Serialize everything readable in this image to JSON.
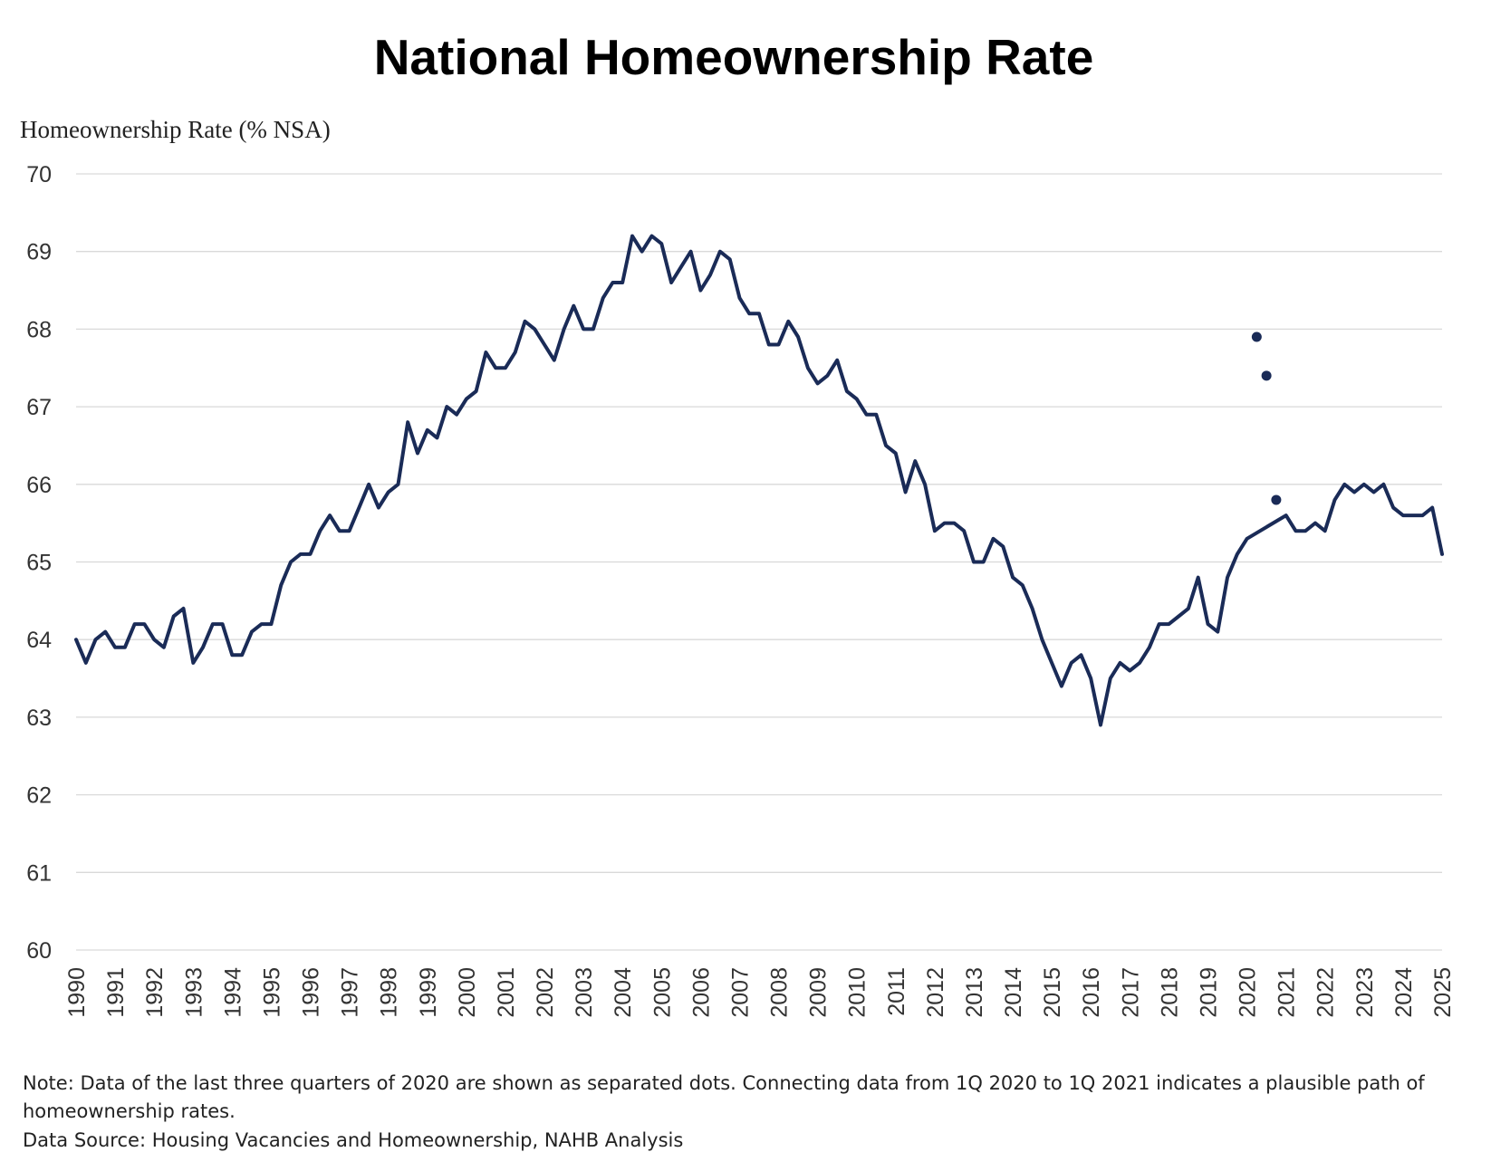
{
  "chart_data": {
    "type": "line",
    "title": "National Homeownership Rate",
    "ylabel": "Homeownership Rate (% NSA)",
    "xlabel": "",
    "ylim": [
      60,
      70
    ],
    "yticks": [
      "60",
      "61",
      "62",
      "63",
      "64",
      "65",
      "66",
      "67",
      "68",
      "69",
      "70"
    ],
    "xticks": [
      "1990",
      "1991",
      "1992",
      "1993",
      "1994",
      "1995",
      "1996",
      "1997",
      "1998",
      "1999",
      "2000",
      "2001",
      "2002",
      "2003",
      "2004",
      "2005",
      "2006",
      "2007",
      "2008",
      "2009",
      "2010",
      "2011",
      "2012",
      "2013",
      "2014",
      "2015",
      "2016",
      "2017",
      "2018",
      "2019",
      "2020",
      "2021",
      "2022",
      "2023",
      "2024",
      "2025"
    ],
    "grid": true,
    "legend": "none",
    "line_color": "#1a2b57",
    "x_start": "1990 Q1",
    "frequency": "quarterly",
    "series": [
      {
        "values": [
          64.0,
          63.7,
          64.0,
          64.1,
          63.9,
          63.9,
          64.2,
          64.2,
          64.0,
          63.9,
          64.3,
          64.4,
          63.7,
          63.9,
          64.2,
          64.2,
          63.8,
          63.8,
          64.1,
          64.2,
          64.2,
          64.7,
          65.0,
          65.1,
          65.1,
          65.4,
          65.6,
          65.4,
          65.4,
          65.7,
          66.0,
          65.7,
          65.9,
          66.0,
          66.8,
          66.4,
          66.7,
          66.6,
          67.0,
          66.9,
          67.1,
          67.2,
          67.7,
          67.5,
          67.5,
          67.7,
          68.1,
          68.0,
          67.8,
          67.6,
          68.0,
          68.3,
          68.0,
          68.0,
          68.4,
          68.6,
          68.6,
          69.2,
          69.0,
          69.2,
          69.1,
          68.6,
          68.8,
          69.0,
          68.5,
          68.7,
          69.0,
          68.9,
          68.4,
          68.2,
          68.2,
          67.8,
          67.8,
          68.1,
          67.9,
          67.5,
          67.3,
          67.4,
          67.6,
          67.2,
          67.1,
          66.9,
          66.9,
          66.5,
          66.4,
          65.9,
          66.3,
          66.0,
          65.4,
          65.5,
          65.5,
          65.4,
          65.0,
          65.0,
          65.3,
          65.2,
          64.8,
          64.7,
          64.4,
          64.0,
          63.7,
          63.4,
          63.7,
          63.8,
          63.5,
          62.9,
          63.5,
          63.7,
          63.6,
          63.7,
          63.9,
          64.2,
          64.2,
          64.3,
          64.4,
          64.8,
          64.2,
          64.1,
          64.8,
          65.1,
          65.3,
          null,
          null,
          null,
          65.6,
          65.4,
          65.4,
          65.5,
          65.4,
          65.8,
          66.0,
          65.9,
          66.0,
          65.9,
          66.0,
          65.7,
          65.6,
          65.6,
          65.6,
          65.7,
          65.1
        ]
      }
    ],
    "separated_dots": [
      {
        "quarter": "2020 Q2",
        "value": 67.9
      },
      {
        "quarter": "2020 Q3",
        "value": 67.4
      },
      {
        "quarter": "2020 Q4",
        "value": 65.8
      }
    ]
  },
  "notes": {
    "line1": "Note: Data of the last three quarters of 2020 are shown as separated dots. Connecting data from 1Q 2020 to 1Q 2021 indicates a plausible path of",
    "line2": "homeownership rates.",
    "source": "Data Source: Housing Vacancies and Homeownership, NAHB Analysis"
  }
}
